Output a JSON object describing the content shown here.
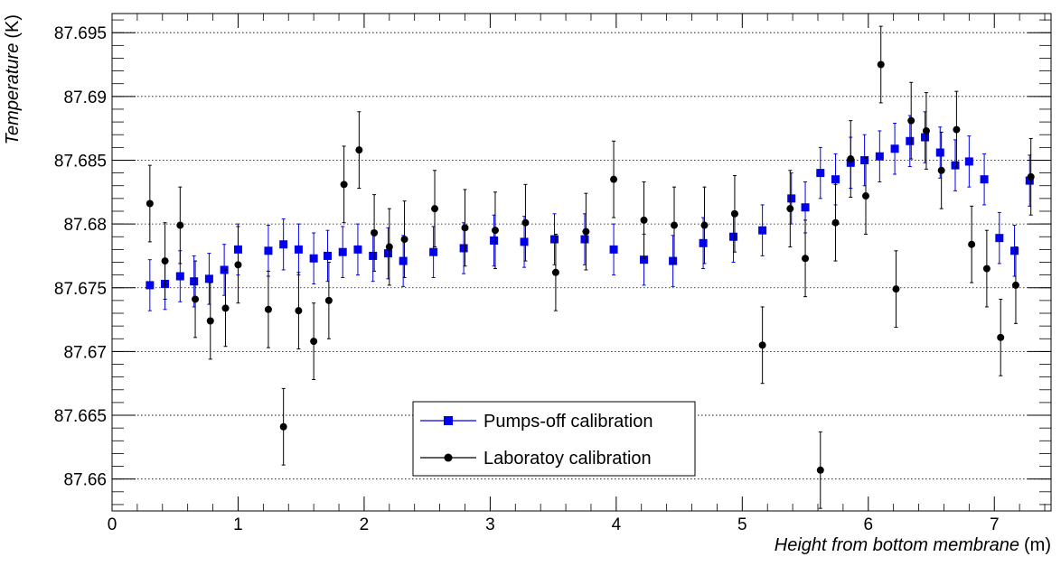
{
  "chart_data": {
    "type": "scatter",
    "title": "",
    "xlabel": "Height from bottom membrane",
    "xunit": "(m)",
    "ylabel": "Temperature",
    "yunit": "(K)",
    "xlim": [
      0,
      7.45
    ],
    "ylim": [
      87.6575,
      87.6965
    ],
    "xticks": [
      0,
      1,
      2,
      3,
      4,
      5,
      6,
      7
    ],
    "xtick_labels": [
      "0",
      "1",
      "2",
      "3",
      "4",
      "5",
      "6",
      "7"
    ],
    "yticks": [
      87.66,
      87.665,
      87.67,
      87.675,
      87.68,
      87.685,
      87.69,
      87.695
    ],
    "ytick_labels": [
      "87.66",
      "87.665",
      "87.67",
      "87.675",
      "87.68",
      "87.685",
      "87.69",
      "87.695"
    ],
    "grid": "horizontal-dotted",
    "legend_position": "bottom-center",
    "series": [
      {
        "name": "Pumps-off calibration",
        "color": "#0000ee",
        "marker": "square",
        "x": [
          0.3,
          0.42,
          0.54,
          0.65,
          0.77,
          0.89,
          1.0,
          1.24,
          1.36,
          1.48,
          1.6,
          1.71,
          1.83,
          1.95,
          2.07,
          2.19,
          2.31,
          2.55,
          2.79,
          3.03,
          3.27,
          3.51,
          3.75,
          3.98,
          4.22,
          4.45,
          4.69,
          4.93,
          5.16,
          5.39,
          5.5,
          5.62,
          5.74,
          5.86,
          5.97,
          6.09,
          6.21,
          6.33,
          6.45,
          6.57,
          6.69,
          6.8,
          6.92,
          7.04,
          7.16,
          7.28
        ],
        "y": [
          87.6752,
          87.6753,
          87.6759,
          87.6755,
          87.6757,
          87.6764,
          87.678,
          87.6779,
          87.6784,
          87.678,
          87.6773,
          87.6775,
          87.6778,
          87.678,
          87.6775,
          87.6777,
          87.6771,
          87.6778,
          87.6781,
          87.6787,
          87.6786,
          87.6788,
          87.6788,
          87.678,
          87.6772,
          87.6771,
          87.6785,
          87.679,
          87.6795,
          87.682,
          87.6813,
          87.684,
          87.6835,
          87.6848,
          87.685,
          87.6853,
          87.6859,
          87.6865,
          87.6868,
          87.6856,
          87.6846,
          87.6849,
          87.6835,
          87.6789,
          87.6779,
          87.6834
        ],
        "err": [
          0.002,
          0.002,
          0.002,
          0.002,
          0.002,
          0.002,
          0.002,
          0.002,
          0.002,
          0.002,
          0.002,
          0.002,
          0.002,
          0.002,
          0.002,
          0.002,
          0.002,
          0.002,
          0.002,
          0.002,
          0.002,
          0.002,
          0.002,
          0.002,
          0.002,
          0.002,
          0.002,
          0.002,
          0.002,
          0.002,
          0.002,
          0.002,
          0.002,
          0.002,
          0.002,
          0.002,
          0.002,
          0.002,
          0.002,
          0.002,
          0.002,
          0.002,
          0.002,
          0.002,
          0.002,
          0.002
        ]
      },
      {
        "name": "Laboratoy calibration",
        "color": "#000000",
        "marker": "circle",
        "x": [
          0.3,
          0.42,
          0.54,
          0.66,
          0.78,
          0.9,
          1.0,
          1.24,
          1.36,
          1.48,
          1.6,
          1.72,
          1.84,
          1.96,
          2.08,
          2.2,
          2.32,
          2.56,
          2.8,
          3.04,
          3.28,
          3.52,
          3.76,
          3.98,
          4.22,
          4.46,
          4.7,
          4.94,
          5.16,
          5.38,
          5.5,
          5.62,
          5.74,
          5.86,
          5.98,
          6.1,
          6.22,
          6.34,
          6.46,
          6.58,
          6.7,
          6.82,
          6.94,
          7.05,
          7.17,
          7.29
        ],
        "y": [
          87.6816,
          87.6771,
          87.6799,
          87.6741,
          87.6724,
          87.6734,
          87.6768,
          87.6733,
          87.6641,
          87.6732,
          87.6708,
          87.674,
          87.6831,
          87.6858,
          87.6793,
          87.6782,
          87.6788,
          87.6812,
          87.6797,
          87.6795,
          87.6801,
          87.6762,
          87.6794,
          87.6835,
          87.6803,
          87.6799,
          87.6799,
          87.6808,
          87.6705,
          87.6812,
          87.6773,
          87.6607,
          87.6801,
          87.6851,
          87.6822,
          87.6925,
          87.6749,
          87.6881,
          87.6873,
          87.6842,
          87.6874,
          87.6784,
          87.6765,
          87.6711,
          87.6752,
          87.6837
        ],
        "err": [
          0.003,
          0.003,
          0.003,
          0.003,
          0.003,
          0.003,
          0.003,
          0.003,
          0.003,
          0.003,
          0.003,
          0.003,
          0.003,
          0.003,
          0.003,
          0.003,
          0.003,
          0.003,
          0.003,
          0.003,
          0.003,
          0.003,
          0.003,
          0.003,
          0.003,
          0.003,
          0.003,
          0.003,
          0.003,
          0.003,
          0.003,
          0.003,
          0.003,
          0.003,
          0.003,
          0.003,
          0.003,
          0.003,
          0.003,
          0.003,
          0.003,
          0.003,
          0.003,
          0.003,
          0.003,
          0.003
        ]
      }
    ]
  }
}
